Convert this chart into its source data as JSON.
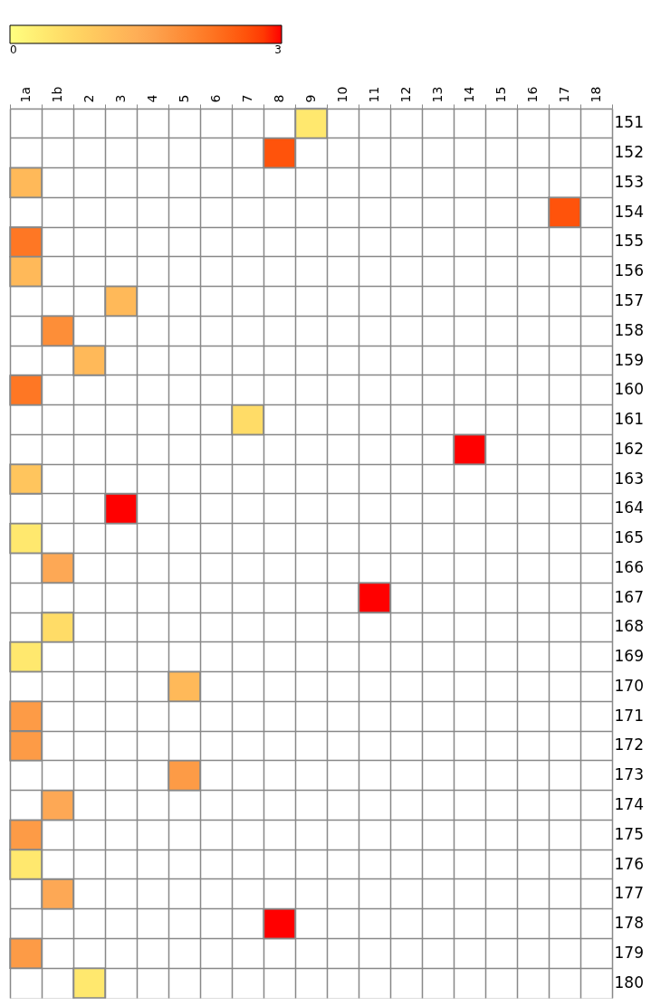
{
  "chart_data": {
    "type": "heatmap",
    "categories": [
      "1a",
      "1b",
      "2",
      "3",
      "4",
      "5",
      "6",
      "7",
      "8",
      "9",
      "10",
      "11",
      "12",
      "13",
      "14",
      "15",
      "16",
      "17",
      "18"
    ],
    "y_categories": [
      "151",
      "152",
      "153",
      "154",
      "155",
      "156",
      "157",
      "158",
      "159",
      "160",
      "161",
      "162",
      "163",
      "164",
      "165",
      "166",
      "167",
      "168",
      "169",
      "170",
      "171",
      "172",
      "173",
      "174",
      "175",
      "176",
      "177",
      "178",
      "179",
      "180"
    ],
    "cells": [
      [
        null,
        null,
        null,
        null,
        null,
        null,
        null,
        null,
        null,
        0.4,
        null,
        null,
        null,
        null,
        null,
        null,
        null,
        null,
        null
      ],
      [
        null,
        null,
        null,
        null,
        null,
        null,
        null,
        null,
        2.6,
        null,
        null,
        null,
        null,
        null,
        null,
        null,
        null,
        null,
        null
      ],
      [
        1.2,
        null,
        null,
        null,
        null,
        null,
        null,
        null,
        null,
        null,
        null,
        null,
        null,
        null,
        null,
        null,
        null,
        null,
        null
      ],
      [
        null,
        null,
        null,
        null,
        null,
        null,
        null,
        null,
        null,
        null,
        null,
        null,
        null,
        null,
        null,
        null,
        null,
        2.6,
        null
      ],
      [
        2.2,
        null,
        null,
        null,
        null,
        null,
        null,
        null,
        null,
        null,
        null,
        null,
        null,
        null,
        null,
        null,
        null,
        null,
        null
      ],
      [
        1.2,
        null,
        null,
        null,
        null,
        null,
        null,
        null,
        null,
        null,
        null,
        null,
        null,
        null,
        null,
        null,
        null,
        null,
        null
      ],
      [
        null,
        null,
        null,
        1.2,
        null,
        null,
        null,
        null,
        null,
        null,
        null,
        null,
        null,
        null,
        null,
        null,
        null,
        null,
        null
      ],
      [
        null,
        1.9,
        null,
        null,
        null,
        null,
        null,
        null,
        null,
        null,
        null,
        null,
        null,
        null,
        null,
        null,
        null,
        null,
        null
      ],
      [
        null,
        null,
        1.2,
        null,
        null,
        null,
        null,
        null,
        null,
        null,
        null,
        null,
        null,
        null,
        null,
        null,
        null,
        null,
        null
      ],
      [
        2.2,
        null,
        null,
        null,
        null,
        null,
        null,
        null,
        null,
        null,
        null,
        null,
        null,
        null,
        null,
        null,
        null,
        null,
        null
      ],
      [
        null,
        null,
        null,
        null,
        null,
        null,
        null,
        0.6,
        null,
        null,
        null,
        null,
        null,
        null,
        null,
        null,
        null,
        null,
        null
      ],
      [
        null,
        null,
        null,
        null,
        null,
        null,
        null,
        null,
        null,
        null,
        null,
        null,
        null,
        null,
        3,
        null,
        null,
        null,
        null
      ],
      [
        1.0,
        null,
        null,
        null,
        null,
        null,
        null,
        null,
        null,
        null,
        null,
        null,
        null,
        null,
        null,
        null,
        null,
        null,
        null
      ],
      [
        null,
        null,
        null,
        3,
        null,
        null,
        null,
        null,
        null,
        null,
        null,
        null,
        null,
        null,
        null,
        null,
        null,
        null,
        null
      ],
      [
        0.4,
        null,
        null,
        null,
        null,
        null,
        null,
        null,
        null,
        null,
        null,
        null,
        null,
        null,
        null,
        null,
        null,
        null,
        null
      ],
      [
        null,
        1.5,
        null,
        null,
        null,
        null,
        null,
        null,
        null,
        null,
        null,
        null,
        null,
        null,
        null,
        null,
        null,
        null,
        null
      ],
      [
        null,
        null,
        null,
        null,
        null,
        null,
        null,
        null,
        null,
        null,
        null,
        3,
        null,
        null,
        null,
        null,
        null,
        null,
        null
      ],
      [
        null,
        0.6,
        null,
        null,
        null,
        null,
        null,
        null,
        null,
        null,
        null,
        null,
        null,
        null,
        null,
        null,
        null,
        null,
        null
      ],
      [
        0.4,
        null,
        null,
        null,
        null,
        null,
        null,
        null,
        null,
        null,
        null,
        null,
        null,
        null,
        null,
        null,
        null,
        null,
        null
      ],
      [
        null,
        null,
        null,
        null,
        null,
        1.2,
        null,
        null,
        null,
        null,
        null,
        null,
        null,
        null,
        null,
        null,
        null,
        null,
        null
      ],
      [
        1.7,
        null,
        null,
        null,
        null,
        null,
        null,
        null,
        null,
        null,
        null,
        null,
        null,
        null,
        null,
        null,
        null,
        null,
        null
      ],
      [
        1.7,
        null,
        null,
        null,
        null,
        null,
        null,
        null,
        null,
        null,
        null,
        null,
        null,
        null,
        null,
        null,
        null,
        null,
        null
      ],
      [
        null,
        null,
        null,
        null,
        null,
        1.7,
        null,
        null,
        null,
        null,
        null,
        null,
        null,
        null,
        null,
        null,
        null,
        null,
        null
      ],
      [
        null,
        1.5,
        null,
        null,
        null,
        null,
        null,
        null,
        null,
        null,
        null,
        null,
        null,
        null,
        null,
        null,
        null,
        null,
        null
      ],
      [
        1.7,
        null,
        null,
        null,
        null,
        null,
        null,
        null,
        null,
        null,
        null,
        null,
        null,
        null,
        null,
        null,
        null,
        null,
        null
      ],
      [
        0.4,
        null,
        null,
        null,
        null,
        null,
        null,
        null,
        null,
        null,
        null,
        null,
        null,
        null,
        null,
        null,
        null,
        null,
        null
      ],
      [
        null,
        1.5,
        null,
        null,
        null,
        null,
        null,
        null,
        null,
        null,
        null,
        null,
        null,
        null,
        null,
        null,
        null,
        null,
        null
      ],
      [
        null,
        null,
        null,
        null,
        null,
        null,
        null,
        null,
        3,
        null,
        null,
        null,
        null,
        null,
        null,
        null,
        null,
        null,
        null
      ],
      [
        1.7,
        null,
        null,
        null,
        null,
        null,
        null,
        null,
        null,
        null,
        null,
        null,
        null,
        null,
        null,
        null,
        null,
        null,
        null
      ],
      [
        null,
        null,
        0.4,
        null,
        null,
        null,
        null,
        null,
        null,
        null,
        null,
        null,
        null,
        null,
        null,
        null,
        null,
        null,
        null
      ]
    ],
    "clim": [
      0,
      3
    ],
    "cticks": [
      0,
      3
    ]
  }
}
